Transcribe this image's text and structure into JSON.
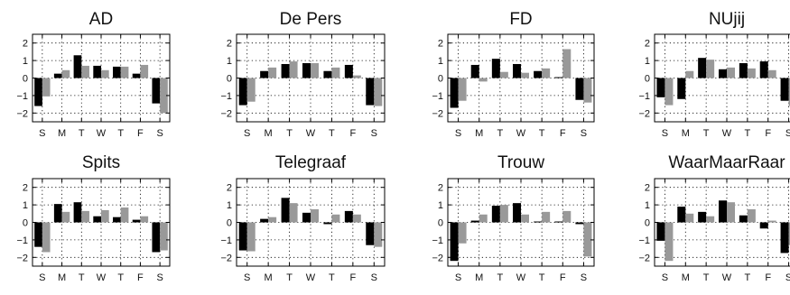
{
  "chart_data": [
    {
      "type": "bar",
      "title": "AD",
      "categories": [
        "S",
        "M",
        "T",
        "W",
        "T",
        "F",
        "S"
      ],
      "series": [
        {
          "values": [
            -1.6,
            0.25,
            1.3,
            0.7,
            0.65,
            0.25,
            -1.45
          ]
        },
        {
          "values": [
            -1.05,
            0.45,
            0.7,
            0.45,
            0.65,
            0.75,
            -2.0
          ]
        }
      ],
      "ylim": [
        -2.5,
        2.5
      ],
      "yticks": [
        "2",
        "1",
        "0",
        "−1",
        "−2"
      ],
      "grid": true
    },
    {
      "type": "bar",
      "title": "De Pers",
      "categories": [
        "S",
        "M",
        "T",
        "W",
        "T",
        "F",
        "S"
      ],
      "series": [
        {
          "values": [
            -1.55,
            0.4,
            0.8,
            0.85,
            0.4,
            0.75,
            -1.55
          ]
        },
        {
          "values": [
            -1.35,
            0.6,
            0.95,
            0.85,
            0.6,
            0.15,
            -1.6
          ]
        }
      ],
      "ylim": [
        -2.5,
        2.5
      ],
      "yticks": [
        "2",
        "1",
        "0",
        "−1",
        "−2"
      ],
      "grid": true
    },
    {
      "type": "bar",
      "title": "FD",
      "categories": [
        "S",
        "M",
        "T",
        "W",
        "T",
        "F",
        "S"
      ],
      "series": [
        {
          "values": [
            -1.7,
            0.75,
            1.1,
            0.8,
            0.4,
            0.05,
            -1.25
          ]
        },
        {
          "values": [
            -1.3,
            -0.2,
            0.35,
            0.3,
            0.55,
            1.65,
            -1.4
          ]
        }
      ],
      "ylim": [
        -2.5,
        2.5
      ],
      "yticks": [
        "2",
        "1",
        "0",
        "−1",
        "−2"
      ],
      "grid": true
    },
    {
      "type": "bar",
      "title": "NUjij",
      "categories": [
        "S",
        "M",
        "T",
        "W",
        "T",
        "F",
        "S"
      ],
      "series": [
        {
          "values": [
            -1.1,
            -1.2,
            1.15,
            0.5,
            0.85,
            0.95,
            -1.3
          ]
        },
        {
          "values": [
            -1.55,
            0.4,
            1.05,
            0.6,
            0.55,
            0.45,
            -1.6
          ]
        }
      ],
      "ylim": [
        -2.5,
        2.5
      ],
      "yticks": [
        "2",
        "1",
        "0",
        "−1",
        "−2"
      ],
      "grid": true
    },
    {
      "type": "bar",
      "title": "Spits",
      "categories": [
        "S",
        "M",
        "T",
        "W",
        "T",
        "F",
        "S"
      ],
      "series": [
        {
          "values": [
            -1.4,
            1.05,
            1.15,
            0.35,
            0.3,
            0.15,
            -1.7
          ]
        },
        {
          "values": [
            -1.7,
            0.6,
            0.65,
            0.7,
            0.85,
            0.35,
            -1.6
          ]
        }
      ],
      "ylim": [
        -2.5,
        2.5
      ],
      "yticks": [
        "2",
        "1",
        "0",
        "−1",
        "−2"
      ],
      "grid": true
    },
    {
      "type": "bar",
      "title": "Telegraaf",
      "categories": [
        "S",
        "M",
        "T",
        "W",
        "T",
        "F",
        "S"
      ],
      "series": [
        {
          "values": [
            -1.6,
            0.2,
            1.4,
            0.55,
            -0.1,
            0.65,
            -1.3
          ]
        },
        {
          "values": [
            -1.65,
            0.3,
            1.1,
            0.75,
            0.45,
            0.45,
            -1.4
          ]
        }
      ],
      "ylim": [
        -2.5,
        2.5
      ],
      "yticks": [
        "2",
        "1",
        "0",
        "−1",
        "−2"
      ],
      "grid": true
    },
    {
      "type": "bar",
      "title": "Trouw",
      "categories": [
        "S",
        "M",
        "T",
        "W",
        "T",
        "F",
        "S"
      ],
      "series": [
        {
          "values": [
            -2.2,
            0.1,
            0.95,
            1.1,
            0.05,
            0.05,
            -0.1
          ]
        },
        {
          "values": [
            -1.2,
            0.45,
            1.0,
            0.45,
            0.6,
            0.65,
            -1.95
          ]
        }
      ],
      "ylim": [
        -2.5,
        2.5
      ],
      "yticks": [
        "2",
        "1",
        "0",
        "−1",
        "−2"
      ],
      "grid": true
    },
    {
      "type": "bar",
      "title": "WaarMaarRaar",
      "categories": [
        "S",
        "M",
        "T",
        "W",
        "T",
        "F",
        "S"
      ],
      "series": [
        {
          "values": [
            -1.05,
            0.9,
            0.6,
            1.25,
            0.4,
            -0.35,
            -1.75
          ]
        },
        {
          "values": [
            -2.2,
            0.5,
            0.35,
            1.15,
            0.75,
            0.1,
            -1.3
          ]
        }
      ],
      "ylim": [
        -2.5,
        2.5
      ],
      "yticks": [
        "2",
        "1",
        "0",
        "−1",
        "−2"
      ],
      "grid": true
    }
  ],
  "colors": {
    "series_1": "#000000",
    "series_2": "#999999",
    "grid": "#000000",
    "axis": "#000000"
  }
}
